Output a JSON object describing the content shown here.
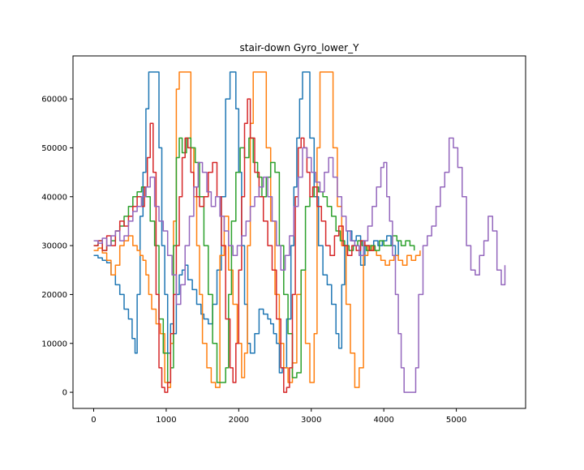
{
  "chart_data": {
    "type": "line",
    "title": "stair-down Gyro_lower_Y",
    "xlabel": "",
    "ylabel": "",
    "xlim": [
      -285,
      5955
    ],
    "ylim": [
      -3300,
      68800
    ],
    "xticks": [
      0,
      1000,
      2000,
      3000,
      4000,
      5000
    ],
    "yticks": [
      0,
      10000,
      20000,
      30000,
      40000,
      50000,
      60000
    ],
    "xtick_labels": [
      "0",
      "1000",
      "2000",
      "3000",
      "4000",
      "5000"
    ],
    "ytick_labels": [
      "0",
      "10000",
      "20000",
      "30000",
      "40000",
      "50000",
      "60000"
    ],
    "grid": false,
    "legend": "none",
    "series": [
      {
        "color": "#1f77b4",
        "x": [
          0,
          60,
          120,
          180,
          240,
          300,
          360,
          420,
          480,
          530,
          570,
          600,
          640,
          680,
          720,
          760,
          800,
          860,
          900,
          940,
          980,
          1020,
          1060,
          1100,
          1140,
          1180,
          1220,
          1260,
          1300,
          1360,
          1420,
          1480,
          1520,
          1580,
          1640,
          1700,
          1760,
          1820,
          1880,
          1920,
          1960,
          2000,
          2040,
          2080,
          2120,
          2160,
          2220,
          2280,
          2340,
          2400,
          2440,
          2480,
          2520,
          2560,
          2600,
          2660,
          2720,
          2760,
          2800,
          2840,
          2880,
          2920,
          2980,
          3040,
          3100,
          3160,
          3220,
          3280,
          3340,
          3380,
          3420,
          3460,
          3500,
          3560,
          3620,
          3680,
          3740,
          3800,
          3860,
          3920,
          3980,
          4040,
          4100,
          4160,
          4200
        ],
        "y": [
          28000,
          27500,
          27000,
          26500,
          24000,
          22000,
          20000,
          17000,
          15000,
          11000,
          8000,
          20000,
          36000,
          45000,
          58000,
          65500,
          65500,
          65500,
          50000,
          30000,
          20000,
          8000,
          14000,
          12000,
          20000,
          24000,
          25000,
          26000,
          23000,
          21000,
          18000,
          16000,
          15000,
          14000,
          18000,
          25000,
          40000,
          60000,
          65500,
          65500,
          58000,
          45000,
          30000,
          18000,
          10000,
          8000,
          12000,
          17000,
          16000,
          15000,
          14000,
          12000,
          10000,
          4000,
          5000,
          15000,
          30000,
          42000,
          52000,
          60000,
          65500,
          65500,
          52000,
          40000,
          30000,
          24000,
          22000,
          18000,
          12000,
          9000,
          22000,
          30000,
          33000,
          31000,
          32000,
          26000,
          30000,
          29000,
          31000,
          30000,
          31000,
          32000,
          30000,
          28000,
          31000
        ]
      },
      {
        "color": "#ff7f0e",
        "x": [
          0,
          60,
          120,
          180,
          240,
          300,
          360,
          420,
          480,
          540,
          600,
          640,
          680,
          720,
          760,
          800,
          860,
          920,
          980,
          1020,
          1060,
          1100,
          1140,
          1180,
          1220,
          1260,
          1300,
          1340,
          1380,
          1420,
          1460,
          1500,
          1560,
          1620,
          1680,
          1740,
          1800,
          1860,
          1920,
          1980,
          2040,
          2080,
          2120,
          2160,
          2200,
          2260,
          2320,
          2380,
          2440,
          2500,
          2560,
          2620,
          2680,
          2740,
          2800,
          2860,
          2920,
          2980,
          3040,
          3080,
          3120,
          3160,
          3200,
          3240,
          3300,
          3360,
          3420,
          3480,
          3540,
          3600,
          3660,
          3720,
          3780,
          3840,
          3900,
          3960,
          4020,
          4080,
          4140,
          4200,
          4260,
          4320,
          4380,
          4440,
          4500
        ],
        "y": [
          29000,
          29500,
          28500,
          27000,
          24000,
          26000,
          30000,
          31000,
          32000,
          30000,
          29000,
          28000,
          27000,
          24000,
          20000,
          17000,
          14000,
          12000,
          2000,
          1000,
          10000,
          35000,
          62000,
          65500,
          65500,
          65500,
          65500,
          50000,
          40000,
          30000,
          20000,
          10000,
          5000,
          2000,
          1000,
          28000,
          36000,
          25000,
          18000,
          10000,
          3000,
          8000,
          30000,
          55000,
          65500,
          65500,
          65500,
          50000,
          35000,
          20000,
          10000,
          5000,
          2000,
          6000,
          20000,
          25000,
          10000,
          2000,
          12000,
          50000,
          65500,
          65500,
          65500,
          65500,
          50000,
          38000,
          30000,
          18000,
          8000,
          1000,
          5000,
          28000,
          30000,
          29000,
          28000,
          27000,
          26000,
          27000,
          28000,
          27000,
          26000,
          28000,
          27000,
          28000,
          29000
        ]
      },
      {
        "color": "#2ca02c",
        "x": [
          0,
          60,
          120,
          180,
          240,
          300,
          360,
          420,
          480,
          540,
          600,
          660,
          720,
          780,
          840,
          900,
          960,
          1020,
          1060,
          1100,
          1140,
          1180,
          1220,
          1280,
          1340,
          1400,
          1460,
          1520,
          1580,
          1640,
          1700,
          1760,
          1820,
          1860,
          1900,
          1960,
          2020,
          2080,
          2140,
          2200,
          2260,
          2320,
          2380,
          2440,
          2500,
          2560,
          2620,
          2680,
          2740,
          2800,
          2860,
          2920,
          2980,
          3040,
          3100,
          3160,
          3220,
          3280,
          3340,
          3400,
          3460,
          3520,
          3580,
          3640,
          3700,
          3760,
          3820,
          3880,
          3940,
          4000,
          4060,
          4120,
          4180,
          4240,
          4300,
          4360,
          4420
        ],
        "y": [
          30000,
          31000,
          29000,
          30000,
          31000,
          33000,
          34000,
          36000,
          38000,
          40000,
          41000,
          42000,
          40000,
          35000,
          30000,
          15000,
          8000,
          2000,
          5000,
          30000,
          48000,
          52000,
          49000,
          52000,
          50000,
          47000,
          40000,
          30000,
          20000,
          10000,
          2000,
          2000,
          5000,
          20000,
          35000,
          45000,
          50000,
          48000,
          52000,
          47000,
          44000,
          40000,
          44000,
          47000,
          45000,
          30000,
          20000,
          12000,
          3000,
          4000,
          25000,
          38000,
          40000,
          42000,
          41000,
          40000,
          38000,
          36000,
          33000,
          31000,
          30000,
          29000,
          30000,
          31000,
          30000,
          29000,
          30000,
          29000,
          31000,
          30000,
          30000,
          32000,
          31000,
          30000,
          31000,
          30000,
          29000
        ]
      },
      {
        "color": "#d62728",
        "x": [
          0,
          60,
          120,
          180,
          240,
          300,
          360,
          420,
          480,
          540,
          600,
          660,
          700,
          740,
          780,
          820,
          860,
          900,
          940,
          980,
          1020,
          1060,
          1100,
          1140,
          1180,
          1220,
          1260,
          1300,
          1340,
          1380,
          1420,
          1460,
          1520,
          1580,
          1640,
          1700,
          1760,
          1820,
          1880,
          1920,
          1960,
          2000,
          2040,
          2080,
          2120,
          2160,
          2220,
          2280,
          2340,
          2400,
          2460,
          2520,
          2580,
          2620,
          2660,
          2700,
          2740,
          2780,
          2820,
          2860,
          2900,
          2940,
          2980,
          3020,
          3080,
          3140,
          3200,
          3260,
          3320,
          3380,
          3440,
          3500,
          3560,
          3620,
          3680,
          3740,
          3800,
          3860
        ],
        "y": [
          30000,
          31000,
          29000,
          32000,
          30000,
          33000,
          35000,
          34000,
          36000,
          38000,
          40000,
          38000,
          42000,
          48000,
          55000,
          45000,
          20000,
          5000,
          1000,
          0,
          2000,
          12000,
          20000,
          30000,
          40000,
          48000,
          52000,
          50000,
          45000,
          42000,
          40000,
          38000,
          40000,
          45000,
          47000,
          40000,
          30000,
          15000,
          5000,
          2000,
          10000,
          25000,
          40000,
          55000,
          60000,
          52000,
          45000,
          40000,
          35000,
          30000,
          25000,
          15000,
          5000,
          0,
          1000,
          5000,
          20000,
          40000,
          50000,
          52000,
          50000,
          45000,
          40000,
          42000,
          38000,
          35000,
          30000,
          28000,
          32000,
          34000,
          30000,
          28000,
          30000,
          29000,
          31000,
          30000,
          29000,
          30000
        ]
      },
      {
        "color": "#9467bd",
        "x": [
          0,
          60,
          120,
          180,
          240,
          300,
          360,
          420,
          480,
          540,
          600,
          660,
          720,
          780,
          840,
          900,
          960,
          1020,
          1080,
          1140,
          1200,
          1260,
          1320,
          1380,
          1440,
          1500,
          1560,
          1620,
          1680,
          1740,
          1800,
          1860,
          1920,
          1980,
          2040,
          2100,
          2160,
          2220,
          2280,
          2340,
          2400,
          2460,
          2520,
          2580,
          2640,
          2700,
          2760,
          2820,
          2880,
          2940,
          3000,
          3060,
          3120,
          3180,
          3240,
          3300,
          3360,
          3420,
          3480,
          3540,
          3600,
          3660,
          3720,
          3780,
          3840,
          3900,
          3960,
          4000,
          4040,
          4080,
          4120,
          4160,
          4200,
          4240,
          4280,
          4320,
          4360,
          4400,
          4440,
          4480,
          4540,
          4600,
          4660,
          4720,
          4780,
          4840,
          4900,
          4960,
          5020,
          5080,
          5140,
          5200,
          5260,
          5320,
          5380,
          5440,
          5500,
          5560,
          5620,
          5670
        ],
        "y": [
          31000,
          30500,
          31500,
          30000,
          32000,
          33000,
          31000,
          32000,
          35000,
          37000,
          38000,
          40000,
          42000,
          44000,
          38000,
          35000,
          33000,
          28000,
          24000,
          18000,
          22000,
          30000,
          36000,
          42000,
          47000,
          45000,
          41000,
          38000,
          40000,
          36000,
          33000,
          30000,
          28000,
          30000,
          32000,
          35000,
          38000,
          40000,
          42000,
          44000,
          40000,
          35000,
          30000,
          25000,
          28000,
          32000,
          38000,
          44000,
          50000,
          48000,
          45000,
          43000,
          41000,
          45000,
          48000,
          44000,
          40000,
          36000,
          33000,
          31000,
          30000,
          28000,
          31000,
          34000,
          38000,
          42000,
          46000,
          47000,
          40000,
          35000,
          28000,
          20000,
          12000,
          5000,
          0,
          0,
          0,
          0,
          5000,
          20000,
          30000,
          32000,
          34000,
          38000,
          42000,
          45000,
          52000,
          50000,
          46000,
          40000,
          30000,
          25000,
          24000,
          28000,
          31000,
          36000,
          33000,
          25000,
          22000,
          26000
        ]
      }
    ]
  }
}
